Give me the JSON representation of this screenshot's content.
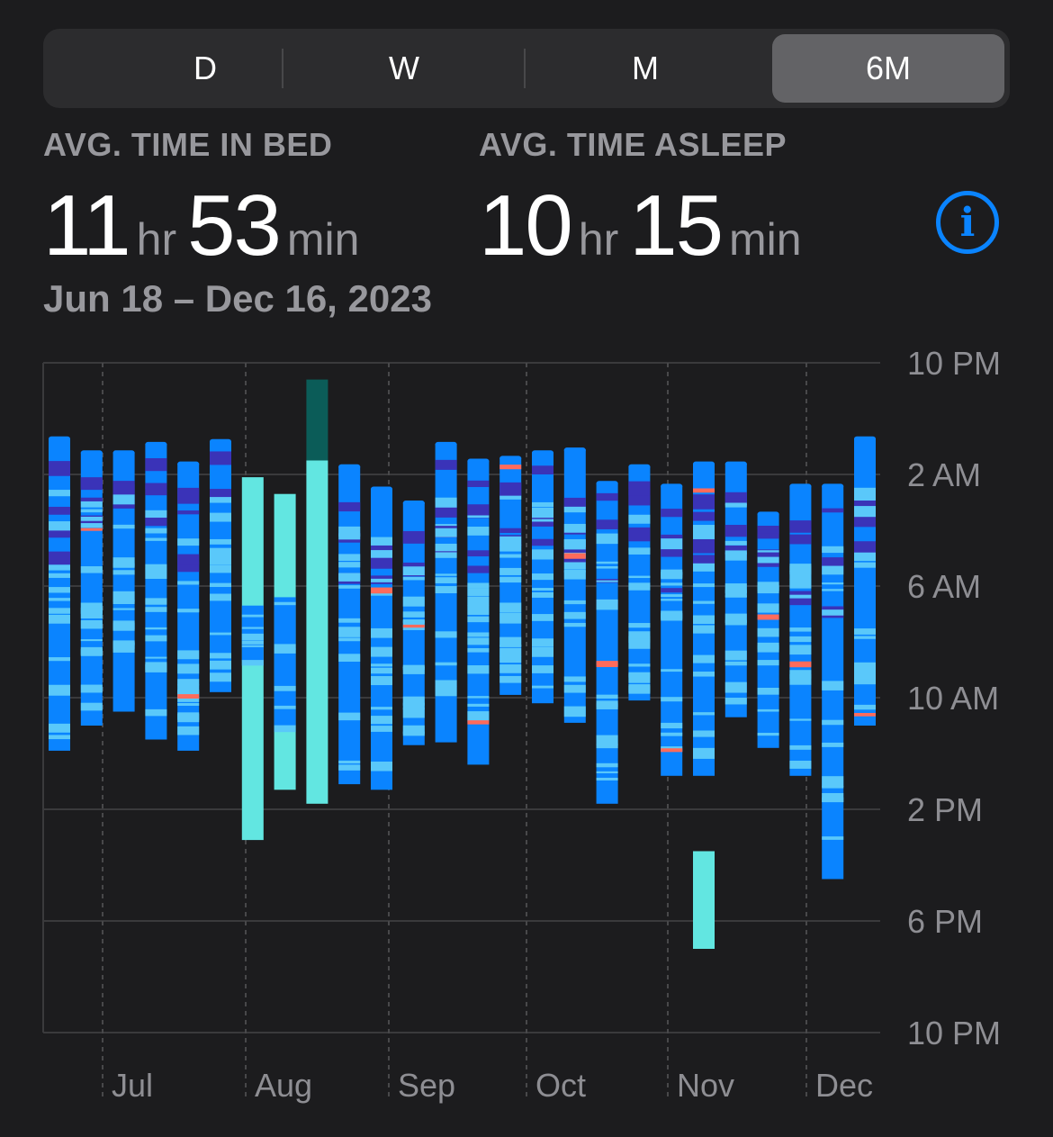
{
  "segmented_control": {
    "options": [
      "D",
      "W",
      "M",
      "6M"
    ],
    "selected": "6M"
  },
  "stats": {
    "time_in_bed": {
      "label": "AVG. TIME IN BED",
      "hours": "11",
      "hours_unit": "hr",
      "minutes": "53",
      "minutes_unit": "min"
    },
    "time_asleep": {
      "label": "AVG. TIME ASLEEP",
      "hours": "10",
      "hours_unit": "hr",
      "minutes": "15",
      "minutes_unit": "min"
    }
  },
  "date_range": "Jun 18 – Dec 16, 2023",
  "info_icon": "info-circle-icon",
  "colors": {
    "background": "#1c1c1e",
    "in_bed": "#62e6e1",
    "awake": "#ff6b5b",
    "rem": "#5ac8fa",
    "core": "#0a84ff",
    "deep": "#3a33b8",
    "tall_bar": "#0b5c58",
    "accent": "#0a84ff"
  },
  "chart_data": {
    "type": "range-bar",
    "y_axis": {
      "ticks": [
        "10 PM",
        "2 AM",
        "6 AM",
        "10 AM",
        "2 PM",
        "6 PM",
        "10 PM"
      ],
      "range_hours_from_10pm": [
        0,
        24
      ]
    },
    "x_axis": {
      "months": [
        "Jul",
        "Aug",
        "Sep",
        "Oct",
        "Nov",
        "Dec"
      ]
    },
    "grid": true,
    "bars": [
      {
        "start": 2.7,
        "end": 13.9,
        "style": "sleep",
        "seed": 1
      },
      {
        "start": 3.2,
        "end": 13.0,
        "style": "sleep",
        "seed": 2
      },
      {
        "start": 3.2,
        "end": 12.5,
        "style": "sleep",
        "seed": 3
      },
      {
        "start": 2.9,
        "end": 13.5,
        "style": "sleep",
        "seed": 4
      },
      {
        "start": 3.6,
        "end": 13.9,
        "style": "sleep",
        "seed": 5
      },
      {
        "start": 2.8,
        "end": 11.8,
        "style": "sleep",
        "seed": 6
      },
      {
        "start": 4.1,
        "end": 17.1,
        "style": "inbed",
        "core_start": 8.7,
        "core_end": 10.7
      },
      {
        "start": 4.7,
        "end": 15.3,
        "style": "inbed",
        "core_start": 8.4,
        "core_end": 13.0
      },
      {
        "start": 0.6,
        "end": 15.8,
        "style": "tall",
        "split": 3.5
      },
      {
        "start": 3.7,
        "end": 15.1,
        "style": "sleep",
        "seed": 7
      },
      {
        "start": 4.5,
        "end": 15.3,
        "style": "sleep",
        "seed": 8
      },
      {
        "start": 5.0,
        "end": 13.7,
        "style": "sleep",
        "seed": 9
      },
      {
        "start": 2.9,
        "end": 13.6,
        "style": "sleep",
        "seed": 10
      },
      {
        "start": 3.5,
        "end": 14.4,
        "style": "sleep",
        "seed": 11
      },
      {
        "start": 3.4,
        "end": 11.9,
        "style": "sleep",
        "seed": 12
      },
      {
        "start": 3.2,
        "end": 12.2,
        "style": "sleep",
        "seed": 13
      },
      {
        "start": 3.1,
        "end": 12.9,
        "style": "sleep",
        "seed": 14
      },
      {
        "start": 4.3,
        "end": 15.8,
        "style": "sleep",
        "seed": 15
      },
      {
        "start": 3.7,
        "end": 12.1,
        "style": "sleep",
        "seed": 16
      },
      {
        "start": 4.4,
        "end": 14.8,
        "style": "sleep",
        "seed": 17
      },
      {
        "start": 3.6,
        "end": 14.8,
        "style": "sleep",
        "seed": 18
      },
      {
        "start": 3.6,
        "end": 12.7,
        "style": "sleep",
        "seed": 19
      },
      {
        "start": 5.4,
        "end": 13.8,
        "style": "sleep",
        "seed": 20
      },
      {
        "start": 4.4,
        "end": 14.8,
        "style": "sleep",
        "seed": 21
      },
      {
        "start": 4.4,
        "end": 18.5,
        "style": "sleep",
        "seed": 22
      },
      {
        "start": 2.7,
        "end": 13.0,
        "style": "sleep",
        "seed": 23
      }
    ],
    "extra_bars": [
      {
        "start": 17.5,
        "end": 21.0,
        "style": "inbed"
      }
    ]
  }
}
